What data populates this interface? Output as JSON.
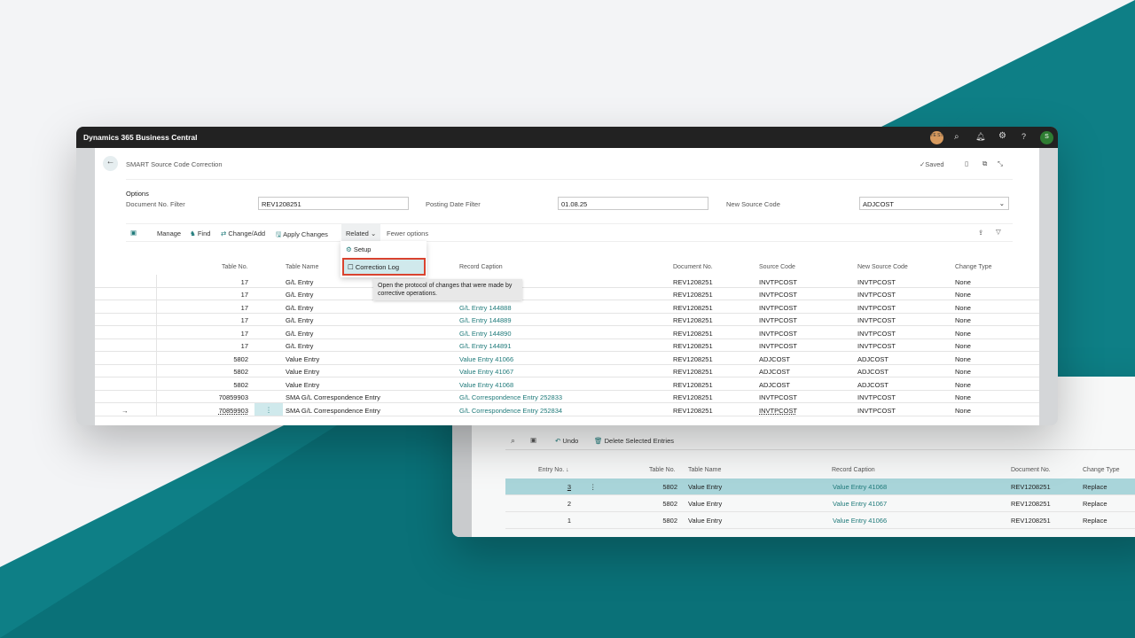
{
  "app": {
    "title": "Dynamics 365 Business Central",
    "badge": "TE ST",
    "user_initial": "S"
  },
  "page": {
    "title": "SMART Source Code Correction",
    "status": "Saved"
  },
  "options": {
    "section": "Options",
    "doc_filter_label": "Document No. Filter",
    "doc_filter_value": "REV1208251",
    "date_filter_label": "Posting Date Filter",
    "date_filter_value": "01.08.25",
    "new_source_label": "New Source Code",
    "new_source_value": "ADJCOST"
  },
  "actions": {
    "manage": "Manage",
    "find": "Find",
    "change_add": "Change/Add",
    "apply": "Apply Changes",
    "related": "Related",
    "fewer": "Fewer options"
  },
  "menu": {
    "setup": "Setup",
    "correction_log": "Correction Log",
    "tooltip": "Open the protocol of changes that were made by corrective operations."
  },
  "colors": {
    "accent": "#1f7a7a",
    "teal_bg": "#0e7f86",
    "highlight": "#d0e9ec",
    "menu_border": "#d9432f"
  },
  "grid": {
    "columns": [
      "Table No.",
      "Table Name",
      "Record Caption",
      "Document No.",
      "Source Code",
      "New Source Code",
      "Change Type"
    ],
    "rows": [
      [
        "17",
        "G/L Entry",
        "",
        "REV1208251",
        "INVTPCOST",
        "INVTPCOST",
        "None"
      ],
      [
        "17",
        "G/L Entry",
        "",
        "REV1208251",
        "INVTPCOST",
        "INVTPCOST",
        "None"
      ],
      [
        "17",
        "G/L Entry",
        "G/L Entry 144888",
        "REV1208251",
        "INVTPCOST",
        "INVTPCOST",
        "None"
      ],
      [
        "17",
        "G/L Entry",
        "G/L Entry 144889",
        "REV1208251",
        "INVTPCOST",
        "INVTPCOST",
        "None"
      ],
      [
        "17",
        "G/L Entry",
        "G/L Entry 144890",
        "REV1208251",
        "INVTPCOST",
        "INVTPCOST",
        "None"
      ],
      [
        "17",
        "G/L Entry",
        "G/L Entry 144891",
        "REV1208251",
        "INVTPCOST",
        "INVTPCOST",
        "None"
      ],
      [
        "5802",
        "Value Entry",
        "Value Entry 41066",
        "REV1208251",
        "ADJCOST",
        "ADJCOST",
        "None"
      ],
      [
        "5802",
        "Value Entry",
        "Value Entry 41067",
        "REV1208251",
        "ADJCOST",
        "ADJCOST",
        "None"
      ],
      [
        "5802",
        "Value Entry",
        "Value Entry 41068",
        "REV1208251",
        "ADJCOST",
        "ADJCOST",
        "None"
      ],
      [
        "70859903",
        "SMA G/L Correspondence Entry",
        "G/L Correspondence Entry 252833",
        "REV1208251",
        "INVTPCOST",
        "INVTPCOST",
        "None"
      ],
      [
        "70859903",
        "SMA G/L Correspondence Entry",
        "G/L Correspondence Entry 252834",
        "REV1208251",
        "INVTPCOST",
        "INVTPCOST",
        "None"
      ]
    ]
  },
  "log": {
    "undo": "Undo",
    "delete": "Delete Selected Entries",
    "columns": [
      "Entry No.",
      "Table No.",
      "Table Name",
      "Record Caption",
      "Document No.",
      "Change Type"
    ],
    "rows": [
      [
        "3",
        "5802",
        "Value Entry",
        "Value Entry 41068",
        "REV1208251",
        "Replace"
      ],
      [
        "2",
        "5802",
        "Value Entry",
        "Value Entry 41067",
        "REV1208251",
        "Replace"
      ],
      [
        "1",
        "5802",
        "Value Entry",
        "Value Entry 41066",
        "REV1208251",
        "Replace"
      ]
    ]
  }
}
